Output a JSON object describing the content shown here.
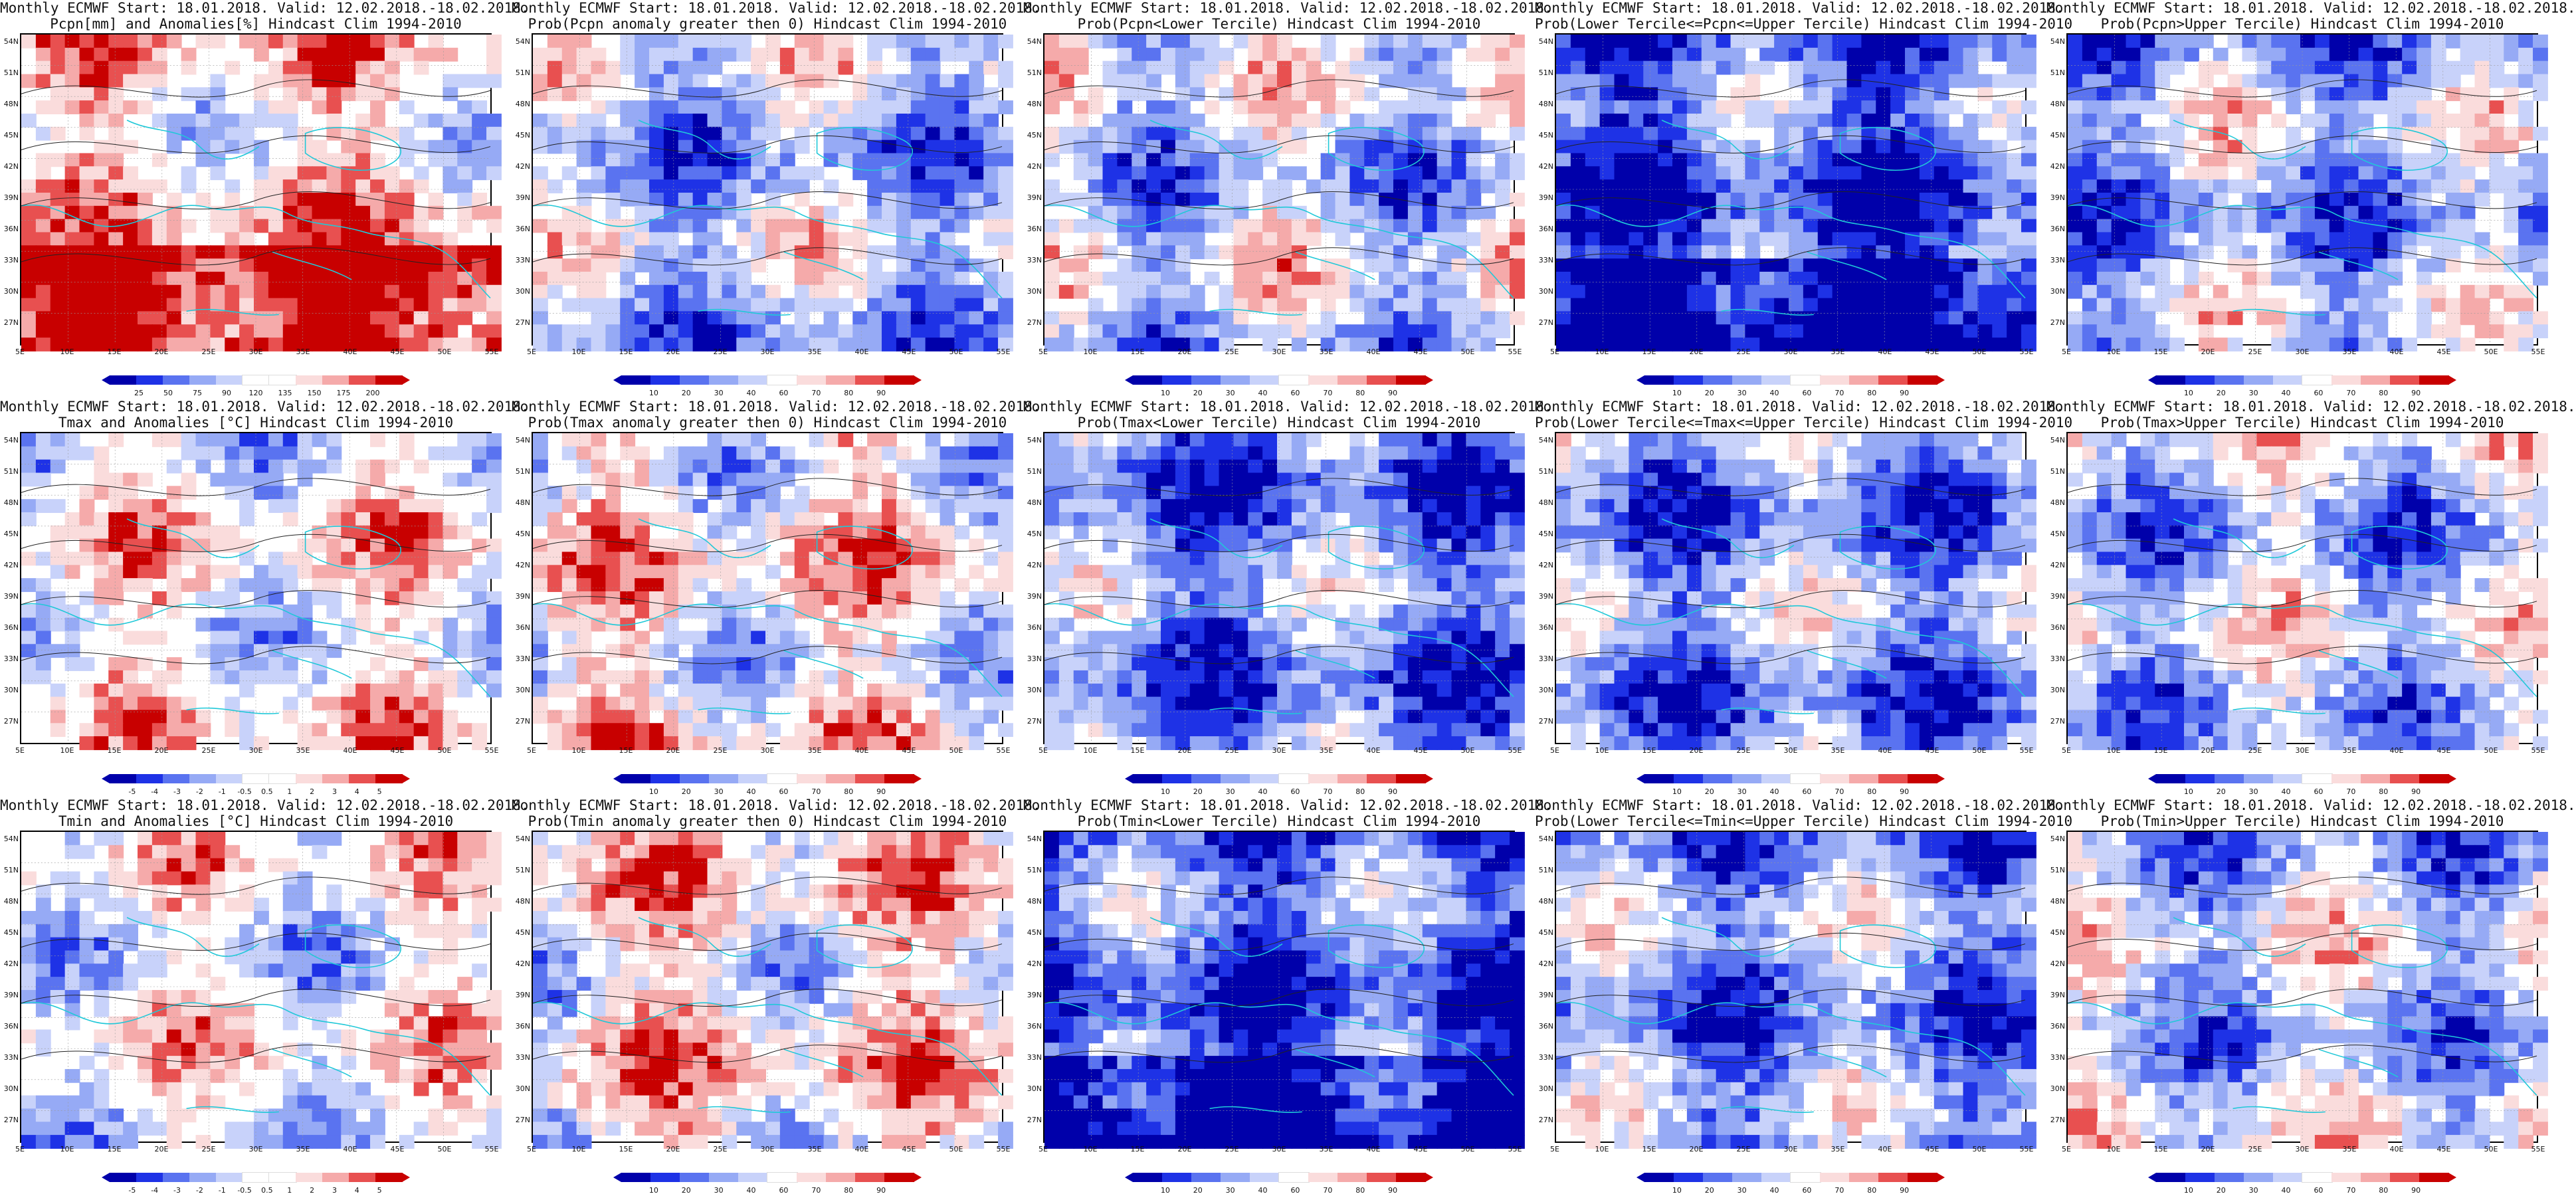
{
  "palettes": {
    "prob": [
      "#0000aa",
      "#1e32e6",
      "#5a73f0",
      "#96aaf5",
      "#c8d2fa",
      "#ffffff",
      "#fadcdc",
      "#f5aaaa",
      "#e85050",
      "#c80000"
    ],
    "anom": [
      "#0000aa",
      "#1e32e6",
      "#5a73f0",
      "#96aaf5",
      "#c8d2fa",
      "#ffffff",
      "#ffffff",
      "#fadcdc",
      "#f5aaaa",
      "#e85050",
      "#c80000"
    ],
    "pcpn": [
      "#0000aa",
      "#1e32e6",
      "#5a73f0",
      "#96aaf5",
      "#c8d2fa",
      "#ffffff",
      "#ffffff",
      "#fadcdc",
      "#f5aaaa",
      "#e85050",
      "#c80000"
    ]
  },
  "latitudes": [
    "54N",
    "51N",
    "48N",
    "45N",
    "42N",
    "39N",
    "36N",
    "33N",
    "30N",
    "27N"
  ],
  "longitudes": [
    "5E",
    "10E",
    "15E",
    "20E",
    "25E",
    "30E",
    "35E",
    "40E",
    "45E",
    "50E",
    "55E"
  ],
  "panels": [
    {
      "title1": "Monthly ECMWF Start: 18.01.2018. Valid: 12.02.2018.-18.02.2018.",
      "title2": "Pcpn[mm] and Anomalies[%] Hindcast Clim 1994-2010",
      "scheme": "pcpn",
      "bias": 0.55,
      "ticks": [
        "25",
        "50",
        "75",
        "90",
        "120",
        "135",
        "150",
        "175",
        "200"
      ]
    },
    {
      "title1": "Monthly ECMWF Start: 18.01.2018. Valid: 12.02.2018.-18.02.2018.",
      "title2": "Prob(Pcpn anomaly greater then 0) Hindcast Clim 1994-2010",
      "scheme": "prob",
      "bias": -0.25,
      "ticks": [
        "10",
        "20",
        "30",
        "40",
        "60",
        "70",
        "80",
        "90"
      ]
    },
    {
      "title1": "Monthly ECMWF Start: 18.01.2018. Valid: 12.02.2018.-18.02.2018.",
      "title2": "Prob(Pcpn<Lower Tercile) Hindcast Clim 1994-2010",
      "scheme": "prob",
      "bias": -0.15,
      "ticks": [
        "10",
        "20",
        "30",
        "40",
        "60",
        "70",
        "80",
        "90"
      ]
    },
    {
      "title1": "Monthly ECMWF Start: 18.01.2018. Valid: 12.02.2018.-18.02.2018.",
      "title2": "Prob(Lower Tercile<=Pcpn<=Upper Tercile) Hindcast Clim 1994-2010",
      "scheme": "prob",
      "bias": -0.75,
      "ticks": [
        "10",
        "20",
        "30",
        "40",
        "60",
        "70",
        "80",
        "90"
      ]
    },
    {
      "title1": "Monthly ECMWF Start: 18.01.2018. Valid: 12.02.2018.-18.02.2018.",
      "title2": "Prob(Pcpn>Upper Tercile) Hindcast Clim 1994-2010",
      "scheme": "prob",
      "bias": -0.3,
      "ticks": [
        "10",
        "20",
        "30",
        "40",
        "60",
        "70",
        "80",
        "90"
      ]
    },
    {
      "title1": "Monthly ECMWF Start: 18.01.2018. Valid: 12.02.2018.-18.02.2018.",
      "title2": "Tmax and Anomalies [°C] Hindcast Clim 1994-2010",
      "scheme": "anom",
      "bias": 0.2,
      "ticks": [
        "-5",
        "-4",
        "-3",
        "-2",
        "-1",
        "-0.5",
        "0.5",
        "1",
        "2",
        "3",
        "4",
        "5"
      ]
    },
    {
      "title1": "Monthly ECMWF Start: 18.01.2018. Valid: 12.02.2018.-18.02.2018.",
      "title2": "Prob(Tmax anomaly greater then 0) Hindcast Clim 1994-2010",
      "scheme": "prob",
      "bias": 0.25,
      "ticks": [
        "10",
        "20",
        "30",
        "40",
        "60",
        "70",
        "80",
        "90"
      ]
    },
    {
      "title1": "Monthly ECMWF Start: 18.01.2018. Valid: 12.02.2018.-18.02.2018.",
      "title2": "Prob(Tmax<Lower Tercile) Hindcast Clim 1994-2010",
      "scheme": "prob",
      "bias": -0.55,
      "ticks": [
        "10",
        "20",
        "30",
        "40",
        "60",
        "70",
        "80",
        "90"
      ]
    },
    {
      "title1": "Monthly ECMWF Start: 18.01.2018. Valid: 12.02.2018.-18.02.2018.",
      "title2": "Prob(Lower Tercile<=Tmax<=Upper Tercile) Hindcast Clim 1994-2010",
      "scheme": "prob",
      "bias": -0.45,
      "ticks": [
        "10",
        "20",
        "30",
        "40",
        "60",
        "70",
        "80",
        "90"
      ]
    },
    {
      "title1": "Monthly ECMWF Start: 18.01.2018. Valid: 12.02.2018.-18.02.2018.",
      "title2": "Prob(Tmax>Upper Tercile) Hindcast Clim 1994-2010",
      "scheme": "prob",
      "bias": -0.2,
      "ticks": [
        "10",
        "20",
        "30",
        "40",
        "60",
        "70",
        "80",
        "90"
      ]
    },
    {
      "title1": "Monthly ECMWF Start: 18.01.2018. Valid: 12.02.2018.-18.02.2018.",
      "title2": "Tmin and Anomalies [°C] Hindcast Clim 1994-2010",
      "scheme": "anom",
      "bias": 0.1,
      "ticks": [
        "-5",
        "-4",
        "-3",
        "-2",
        "-1",
        "-0.5",
        "0.5",
        "1",
        "2",
        "3",
        "4",
        "5"
      ]
    },
    {
      "title1": "Monthly ECMWF Start: 18.01.2018. Valid: 12.02.2018.-18.02.2018.",
      "title2": "Prob(Tmin anomaly greater then 0) Hindcast Clim 1994-2010",
      "scheme": "prob",
      "bias": 0.3,
      "ticks": [
        "10",
        "20",
        "30",
        "40",
        "60",
        "70",
        "80",
        "90"
      ]
    },
    {
      "title1": "Monthly ECMWF Start: 18.01.2018. Valid: 12.02.2018.-18.02.2018.",
      "title2": "Prob(Tmin<Lower Tercile) Hindcast Clim 1994-2010",
      "scheme": "prob",
      "bias": -0.7,
      "ticks": [
        "10",
        "20",
        "30",
        "40",
        "60",
        "70",
        "80",
        "90"
      ]
    },
    {
      "title1": "Monthly ECMWF Start: 18.01.2018. Valid: 12.02.2018.-18.02.2018.",
      "title2": "Prob(Lower Tercile<=Tmin<=Upper Tercile) Hindcast Clim 1994-2010",
      "scheme": "prob",
      "bias": -0.45,
      "ticks": [
        "10",
        "20",
        "30",
        "40",
        "60",
        "70",
        "80",
        "90"
      ]
    },
    {
      "title1": "Monthly ECMWF Start: 18.01.2018. Valid: 12.02.2018.-18.02.2018.",
      "title2": "Prob(Tmin>Upper Tercile) Hindcast Clim 1994-2010",
      "scheme": "prob",
      "bias": -0.15,
      "ticks": [
        "10",
        "20",
        "30",
        "40",
        "60",
        "70",
        "80",
        "90"
      ]
    }
  ]
}
